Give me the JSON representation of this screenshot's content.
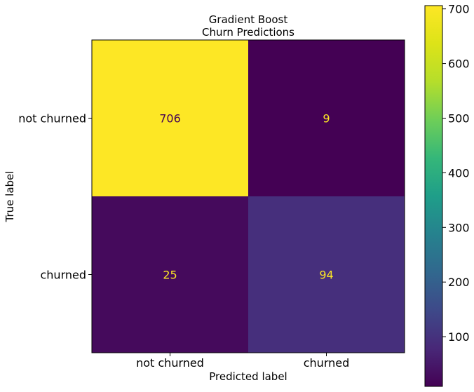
{
  "chart_data": {
    "type": "heatmap",
    "title_lines": [
      "Gradient Boost",
      "Churn Predictions"
    ],
    "xlabel": "Predicted label",
    "ylabel": "True label",
    "x_categories": [
      "not churned",
      "churned"
    ],
    "y_categories": [
      "not churned",
      "churned"
    ],
    "values": [
      [
        706,
        9
      ],
      [
        25,
        94
      ]
    ],
    "colormap": "viridis",
    "colorbar": {
      "min": 9,
      "max": 706,
      "ticks": [
        100,
        200,
        300,
        400,
        500,
        600,
        700
      ]
    },
    "text_colors": {
      "on_dark": "#fde725",
      "on_light": "#440154"
    }
  }
}
